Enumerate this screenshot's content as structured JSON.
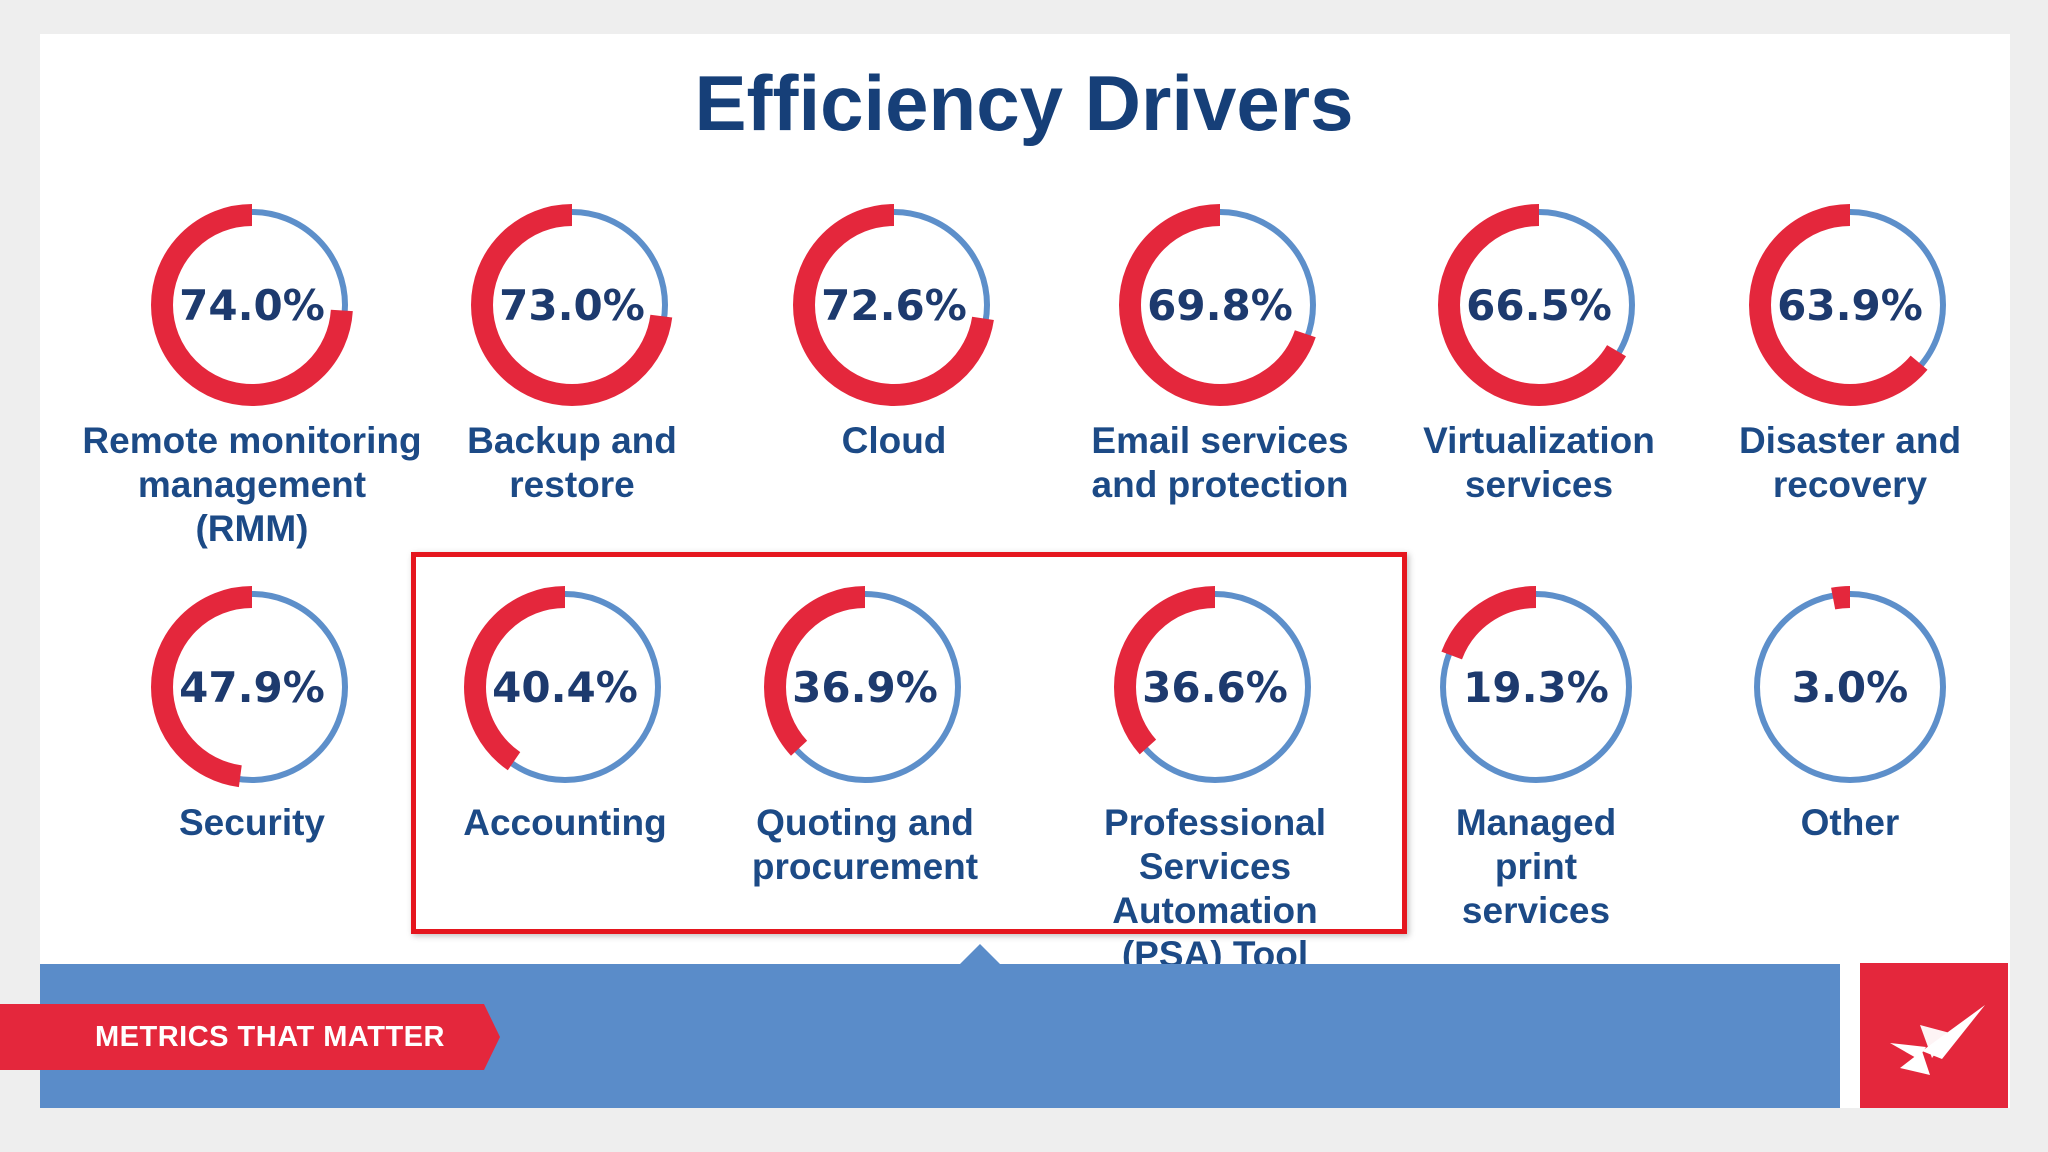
{
  "title": "Efficiency Drivers",
  "colors": {
    "filled": "#e4273c",
    "remaining": "#5d8fca",
    "title": "#163f78",
    "label": "#1c4a86"
  },
  "drivers": [
    {
      "percent_label": "74.0%",
      "value": 74.0,
      "label_lines": [
        "Remote monitoring",
        "management",
        "(RMM)"
      ]
    },
    {
      "percent_label": "73.0%",
      "value": 73.0,
      "label_lines": [
        "Backup and",
        "restore"
      ]
    },
    {
      "percent_label": "72.6%",
      "value": 72.6,
      "label_lines": [
        "Cloud"
      ]
    },
    {
      "percent_label": "69.8%",
      "value": 69.8,
      "label_lines": [
        "Email services",
        "and protection"
      ]
    },
    {
      "percent_label": "66.5%",
      "value": 66.5,
      "label_lines": [
        "Virtualization",
        "services"
      ]
    },
    {
      "percent_label": "63.9%",
      "value": 63.9,
      "label_lines": [
        "Disaster and",
        "recovery"
      ]
    },
    {
      "percent_label": "47.9%",
      "value": 47.9,
      "label_lines": [
        "Security"
      ]
    },
    {
      "percent_label": "40.4%",
      "value": 40.4,
      "label_lines": [
        "Accounting"
      ]
    },
    {
      "percent_label": "36.9%",
      "value": 36.9,
      "label_lines": [
        "Quoting and",
        "procurement"
      ]
    },
    {
      "percent_label": "36.6%",
      "value": 36.6,
      "label_lines": [
        "Professional",
        "Services Automation",
        "(PSA) Tool"
      ]
    },
    {
      "percent_label": "19.3%",
      "value": 19.3,
      "label_lines": [
        "Managed",
        "print",
        "services"
      ]
    },
    {
      "percent_label": "3.0%",
      "value": 3.0,
      "label_lines": [
        "Other"
      ]
    }
  ],
  "footer": {
    "banner_text": "METRICS THAT MATTER",
    "logo_icon": "compass-star-logo"
  }
}
